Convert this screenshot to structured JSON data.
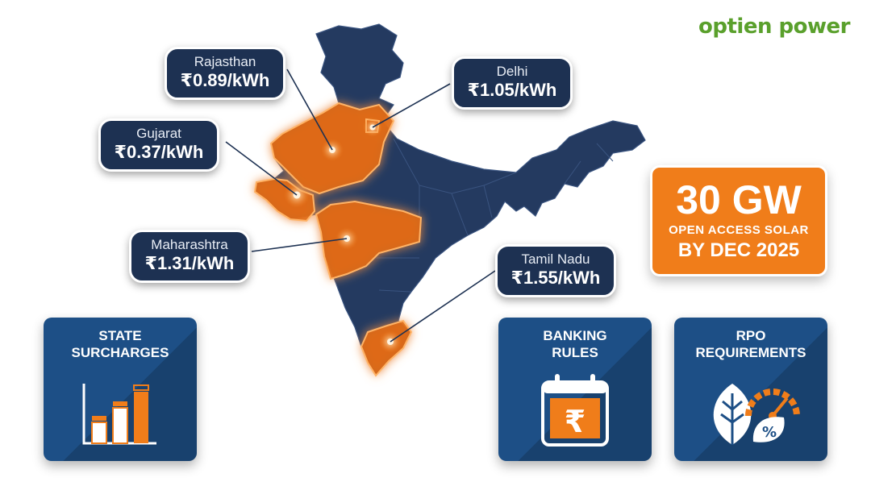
{
  "brand": {
    "logo_text": "optien power",
    "accent": "#f07d1a",
    "navy": "#1d3152",
    "card_blue": "#1d4f86",
    "logo_green": "#5aa02c"
  },
  "states": [
    {
      "name": "Rajasthan",
      "price": "₹0.89/kWh"
    },
    {
      "name": "Delhi",
      "price": "₹1.05/kWh"
    },
    {
      "name": "Gujarat",
      "price": "₹0.37/kWh"
    },
    {
      "name": "Maharashtra",
      "price": "₹1.31/kWh"
    },
    {
      "name": "Tamil Nadu",
      "price": "₹1.55/kWh"
    }
  ],
  "highlight": {
    "value": "30 GW",
    "line1": "OPEN ACCESS SOLAR",
    "line2": "BY DEC 2025"
  },
  "cards": [
    {
      "title": "STATE\nSURCHARGES",
      "icon": "bar-chart-icon"
    },
    {
      "title": "BANKING\nRULES",
      "icon": "calendar-rupee-icon"
    },
    {
      "title": "RPO\nREQUIREMENTS",
      "icon": "leaf-gauge-icon"
    }
  ],
  "icon_glyphs": {
    "rupee": "₹",
    "percent": "%"
  }
}
